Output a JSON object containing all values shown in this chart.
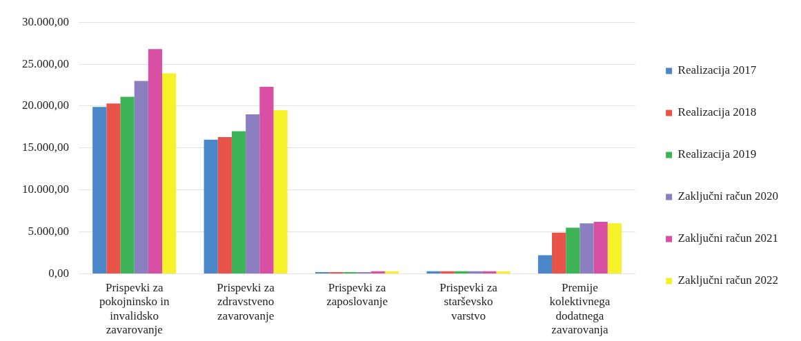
{
  "chart_data": {
    "type": "bar",
    "categories": [
      "Prispevki za pokojninsko in invalidsko zavarovanje",
      "Prispevki za zdravstveno zavarovanje",
      "Prispevki za zaposlovanje",
      "Prispevki za starševsko varstvo",
      "Premije kolektivnega dodatnega zavarovanja"
    ],
    "series": [
      {
        "name": "Realizacija 2017",
        "color": "#4a86c8",
        "values": [
          19900,
          16000,
          200,
          300,
          2200
        ]
      },
      {
        "name": "Realizacija 2018",
        "color": "#e8534a",
        "values": [
          20300,
          16300,
          200,
          300,
          4900
        ]
      },
      {
        "name": "Realizacija 2019",
        "color": "#3cb356",
        "values": [
          21100,
          17000,
          200,
          300,
          5500
        ]
      },
      {
        "name": "Zaključni račun 2020",
        "color": "#8c7fc0",
        "values": [
          23000,
          19000,
          200,
          300,
          6000
        ]
      },
      {
        "name": "Zaključni račun 2021",
        "color": "#d94fa3",
        "values": [
          26800,
          22300,
          300,
          300,
          6200
        ]
      },
      {
        "name": "Zaključni račun 2022",
        "color": "#f5f22a",
        "values": [
          23900,
          19500,
          300,
          300,
          6000
        ]
      }
    ],
    "ylim": [
      0,
      30000
    ],
    "yticks": [
      {
        "value": 0,
        "label": "0,00"
      },
      {
        "value": 5000,
        "label": "5.000,00"
      },
      {
        "value": 10000,
        "label": "10.000,00"
      },
      {
        "value": 15000,
        "label": "15.000,00"
      },
      {
        "value": 20000,
        "label": "20.000,00"
      },
      {
        "value": 25000,
        "label": "25.000,00"
      },
      {
        "value": 30000,
        "label": "30.000,00"
      }
    ],
    "grid": "y",
    "legend": "right"
  }
}
